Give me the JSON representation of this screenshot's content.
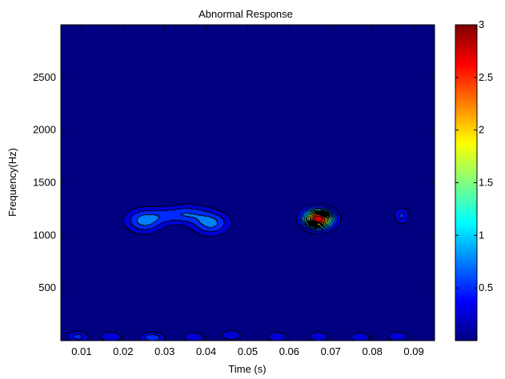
{
  "chart_data": {
    "type": "heatmap",
    "title": "Abnormal Response",
    "xlabel": "Time (s)",
    "ylabel": "Frequency(Hz)",
    "xlim": [
      0.005,
      0.095
    ],
    "ylim": [
      0,
      3000
    ],
    "xticks": [
      0.01,
      0.02,
      0.03,
      0.04,
      0.05,
      0.06,
      0.07,
      0.08,
      0.09
    ],
    "xtick_labels": [
      "0.01",
      "0.02",
      "0.03",
      "0.04",
      "0.05",
      "0.06",
      "0.07",
      "0.08",
      "0.09"
    ],
    "yticks": [
      500,
      1000,
      1500,
      2000,
      2500
    ],
    "ytick_labels": [
      "500",
      "1000",
      "1500",
      "2000",
      "2500"
    ],
    "colorbar": {
      "colormap": "jet",
      "range": [
        0,
        3
      ],
      "ticks": [
        0.5,
        1,
        1.5,
        2,
        2.5,
        3
      ],
      "tick_labels": [
        "0.5",
        "1",
        "1.5",
        "2",
        "2.5",
        "3"
      ]
    },
    "background_level": 0.05,
    "features": [
      {
        "time": 0.067,
        "freq": 1160,
        "peak": 3.0,
        "sigma_t": 0.0023,
        "sigma_f": 60
      },
      {
        "time": 0.025,
        "freq": 1140,
        "peak": 0.8,
        "sigma_t": 0.003,
        "sigma_f": 75
      },
      {
        "time": 0.031,
        "freq": 1195,
        "peak": 0.45,
        "sigma_t": 0.0035,
        "sigma_f": 55
      },
      {
        "time": 0.036,
        "freq": 1210,
        "peak": 0.45,
        "sigma_t": 0.003,
        "sigma_f": 60
      },
      {
        "time": 0.041,
        "freq": 1120,
        "peak": 0.8,
        "sigma_t": 0.003,
        "sigma_f": 75
      },
      {
        "time": 0.087,
        "freq": 1190,
        "peak": 0.5,
        "sigma_t": 0.0012,
        "sigma_f": 55
      },
      {
        "time": 0.009,
        "freq": 40,
        "peak": 0.55,
        "sigma_t": 0.0018,
        "sigma_f": 35
      },
      {
        "time": 0.017,
        "freq": 40,
        "peak": 0.45,
        "sigma_t": 0.0018,
        "sigma_f": 35
      },
      {
        "time": 0.027,
        "freq": 30,
        "peak": 0.65,
        "sigma_t": 0.002,
        "sigma_f": 35
      },
      {
        "time": 0.037,
        "freq": 35,
        "peak": 0.4,
        "sigma_t": 0.0018,
        "sigma_f": 35
      },
      {
        "time": 0.046,
        "freq": 55,
        "peak": 0.4,
        "sigma_t": 0.0018,
        "sigma_f": 35
      },
      {
        "time": 0.057,
        "freq": 40,
        "peak": 0.4,
        "sigma_t": 0.0018,
        "sigma_f": 35
      },
      {
        "time": 0.067,
        "freq": 40,
        "peak": 0.4,
        "sigma_t": 0.0018,
        "sigma_f": 35
      },
      {
        "time": 0.077,
        "freq": 35,
        "peak": 0.4,
        "sigma_t": 0.0018,
        "sigma_f": 35
      },
      {
        "time": 0.086,
        "freq": 45,
        "peak": 0.4,
        "sigma_t": 0.0018,
        "sigma_f": 35
      }
    ],
    "contour_levels": [
      0.25,
      0.5,
      0.75,
      1.0,
      1.25,
      1.5,
      1.75,
      2.0,
      2.25,
      2.5,
      2.75
    ]
  }
}
